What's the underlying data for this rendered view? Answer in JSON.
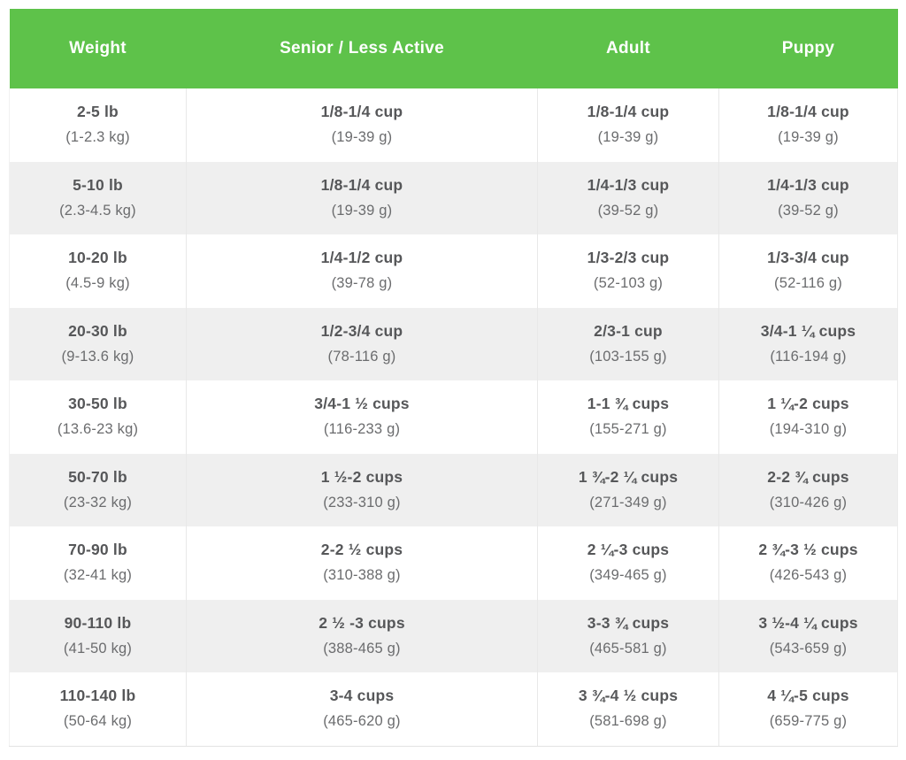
{
  "style": {
    "header_bg": "#5ec24a",
    "header_text": "#ffffff",
    "row_alt_bg": "#efefef",
    "main_text": "#565759",
    "sub_text": "#6b6c6e",
    "divider": "#e8e8e8"
  },
  "chart_data": {
    "type": "table",
    "columns": [
      "Weight",
      "Senior / Less Active",
      "Adult",
      "Puppy"
    ],
    "rows": [
      {
        "cells": [
          {
            "main": "2-5 lb",
            "sub": "(1-2.3 kg)"
          },
          {
            "main": "1/8-1/4 cup",
            "sub": "(19-39 g)"
          },
          {
            "main": "1/8-1/4 cup",
            "sub": "(19-39 g)"
          },
          {
            "main": "1/8-1/4 cup",
            "sub": "(19-39 g)"
          }
        ]
      },
      {
        "cells": [
          {
            "main": "5-10 lb",
            "sub": "(2.3-4.5 kg)"
          },
          {
            "main": "1/8-1/4 cup",
            "sub": "(19-39 g)"
          },
          {
            "main": "1/4-1/3 cup",
            "sub": "(39-52 g)"
          },
          {
            "main": "1/4-1/3 cup",
            "sub": "(39-52 g)"
          }
        ]
      },
      {
        "cells": [
          {
            "main": "10-20 lb",
            "sub": "(4.5-9 kg)"
          },
          {
            "main": "1/4-1/2 cup",
            "sub": "(39-78 g)"
          },
          {
            "main": "1/3-2/3 cup",
            "sub": "(52-103 g)"
          },
          {
            "main": "1/3-3/4 cup",
            "sub": "(52-116 g)"
          }
        ]
      },
      {
        "cells": [
          {
            "main": "20-30 lb",
            "sub": "(9-13.6 kg)"
          },
          {
            "main": "1/2-3/4 cup",
            "sub": "(78-116 g)"
          },
          {
            "main": "2/3-1 cup",
            "sub": "(103-155 g)"
          },
          {
            "main": "3/4-1 ¼ cups",
            "sub": "(116-194 g)"
          }
        ]
      },
      {
        "cells": [
          {
            "main": "30-50 lb",
            "sub": "(13.6-23 kg)"
          },
          {
            "main": "3/4-1 ½ cups",
            "sub": "(116-233 g)"
          },
          {
            "main": "1-1 ¾ cups",
            "sub": "(155-271 g)"
          },
          {
            "main": "1 ¼-2 cups",
            "sub": "(194-310 g)"
          }
        ]
      },
      {
        "cells": [
          {
            "main": "50-70 lb",
            "sub": "(23-32 kg)"
          },
          {
            "main": "1 ½-2 cups",
            "sub": "(233-310 g)"
          },
          {
            "main": "1 ¾-2 ¼ cups",
            "sub": "(271-349 g)"
          },
          {
            "main": "2-2 ¾ cups",
            "sub": "(310-426 g)"
          }
        ]
      },
      {
        "cells": [
          {
            "main": "70-90 lb",
            "sub": "(32-41 kg)"
          },
          {
            "main": "2-2 ½ cups",
            "sub": "(310-388 g)"
          },
          {
            "main": "2 ¼-3 cups",
            "sub": "(349-465 g)"
          },
          {
            "main": "2 ¾-3 ½ cups",
            "sub": "(426-543 g)"
          }
        ]
      },
      {
        "cells": [
          {
            "main": "90-110 lb",
            "sub": "(41-50 kg)"
          },
          {
            "main": "2 ½ -3 cups",
            "sub": "(388-465 g)"
          },
          {
            "main": "3-3 ¾ cups",
            "sub": "(465-581 g)"
          },
          {
            "main": "3 ½-4 ¼ cups",
            "sub": "(543-659 g)"
          }
        ]
      },
      {
        "cells": [
          {
            "main": "110-140 lb",
            "sub": "(50-64 kg)"
          },
          {
            "main": "3-4 cups",
            "sub": "(465-620 g)"
          },
          {
            "main": "3 ¾-4 ½ cups",
            "sub": "(581-698 g)"
          },
          {
            "main": "4 ¼-5 cups",
            "sub": "(659-775 g)"
          }
        ]
      }
    ]
  }
}
